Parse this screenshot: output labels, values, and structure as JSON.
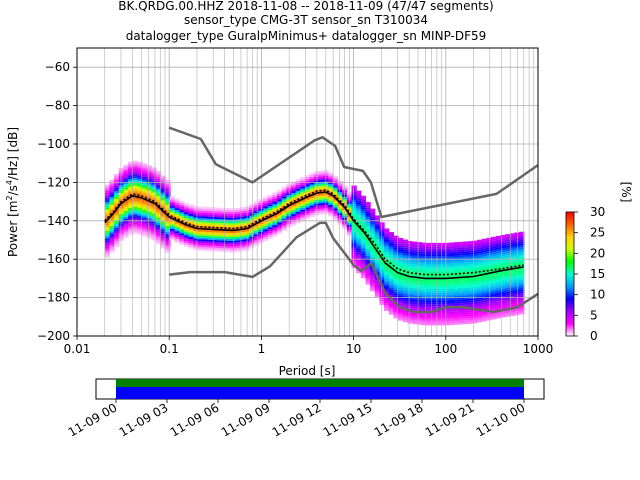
{
  "chart_data": [
    {
      "type": "heatmap",
      "title_lines": [
        "BK.QRDG.00.HHZ   2018-11-08 -- 2018-11-09  (47/47 segments)",
        "sensor_type CMG-3T sensor_sn T310034",
        "datalogger_type GuralpMinimus+ datalogger_sn MINP-DF59"
      ],
      "xlabel": "Period [s]",
      "ylabel_parts": [
        "Power [m",
        "2",
        "/s",
        "4",
        "/Hz] [dB]"
      ],
      "x_scale": "log",
      "xlim": [
        0.01,
        1000
      ],
      "ylim": [
        -200,
        -50
      ],
      "grid": true,
      "x_ticks": [
        {
          "value": 0.01,
          "label": "0.01"
        },
        {
          "value": 0.1,
          "label": "0.1"
        },
        {
          "value": 1,
          "label": "1"
        },
        {
          "value": 10,
          "label": "10"
        },
        {
          "value": 100,
          "label": "100"
        },
        {
          "value": 1000,
          "label": "1000"
        }
      ],
      "y_ticks": [
        {
          "value": -60,
          "label": "−60"
        },
        {
          "value": -80,
          "label": "−80"
        },
        {
          "value": -100,
          "label": "−100"
        },
        {
          "value": -120,
          "label": "−120"
        },
        {
          "value": -140,
          "label": "−140"
        },
        {
          "value": -160,
          "label": "−160"
        },
        {
          "value": -180,
          "label": "−180"
        },
        {
          "value": -200,
          "label": "−200"
        }
      ],
      "colorbar": {
        "label": "[%]",
        "range": [
          0,
          30
        ],
        "ticks": [
          {
            "value": 0,
            "label": "0"
          },
          {
            "value": 5,
            "label": "5"
          },
          {
            "value": 10,
            "label": "10"
          },
          {
            "value": 15,
            "label": "15"
          },
          {
            "value": 20,
            "label": "20"
          },
          {
            "value": 25,
            "label": "25"
          },
          {
            "value": 30,
            "label": "30"
          }
        ],
        "colors": [
          "#ffffff",
          "#ff00ff",
          "#a000ff",
          "#0000ff",
          "#00a0ff",
          "#00ffd0",
          "#00ff00",
          "#d0ff00",
          "#ffd000",
          "#ff6000",
          "#ff0000"
        ]
      },
      "series": [
        {
          "role": "noise-model-high",
          "color": "#666666",
          "x": [
            0.1,
            0.22,
            0.32,
            0.8,
            3.8,
            4.6,
            6.3,
            7.9,
            10,
            12.6,
            15.4,
            20,
            354.8,
            1000
          ],
          "y": [
            -91.5,
            -97.4,
            -110.5,
            -120,
            -98,
            -96.5,
            -101,
            -112,
            -113,
            -114,
            -120,
            -138,
            -126,
            -111
          ]
        },
        {
          "role": "noise-model-low",
          "color": "#666666",
          "x": [
            0.1,
            0.17,
            0.4,
            0.8,
            1.24,
            2.4,
            4.3,
            5,
            6,
            10,
            12,
            15.6,
            21.9,
            31.6,
            45,
            70,
            101,
            154,
            328,
            600,
            1000
          ],
          "y": [
            -168,
            -166.7,
            -166.7,
            -169.2,
            -163.7,
            -148.6,
            -141.1,
            -141.1,
            -149,
            -163,
            -166.2,
            -162.1,
            -177.5,
            -185,
            -187.5,
            -187.5,
            -185,
            -185,
            -187.5,
            -185,
            -178
          ]
        },
        {
          "role": "mode",
          "color": "#000000",
          "x": [
            0.02,
            0.025,
            0.03,
            0.04,
            0.05,
            0.07,
            0.1,
            0.15,
            0.2,
            0.3,
            0.5,
            0.7,
            1,
            1.5,
            2,
            3,
            4,
            5,
            6,
            8,
            10,
            13,
            17,
            22,
            30,
            40,
            60,
            100,
            200,
            400,
            700
          ],
          "y": [
            -141,
            -136,
            -131,
            -127,
            -128,
            -131,
            -138,
            -142,
            -144,
            -144.5,
            -145,
            -144,
            -140,
            -136,
            -132,
            -128,
            -125.5,
            -125,
            -127,
            -133,
            -140,
            -146,
            -154,
            -162,
            -167,
            -169,
            -170,
            -170,
            -169,
            -166,
            -164
          ]
        },
        {
          "role": "mean",
          "color": "#000000",
          "dashed": true,
          "x": [
            0.02,
            0.025,
            0.03,
            0.04,
            0.05,
            0.07,
            0.1,
            0.15,
            0.2,
            0.3,
            0.5,
            0.7,
            1,
            1.5,
            2,
            3,
            4,
            5,
            6,
            8,
            10,
            13,
            17,
            22,
            30,
            40,
            60,
            100,
            200,
            400,
            700
          ],
          "y": [
            -140,
            -135,
            -130,
            -126,
            -127,
            -130,
            -137,
            -141,
            -143,
            -143.5,
            -144,
            -143,
            -139,
            -135,
            -131,
            -127,
            -124.5,
            -124,
            -126,
            -132,
            -139,
            -145,
            -152,
            -160,
            -165,
            -167,
            -168,
            -168,
            -167,
            -165,
            -163
          ]
        }
      ]
    },
    {
      "type": "timeline",
      "x_ticks": [
        "11-09 00",
        "11-09 03",
        "11-09 06",
        "11-09 09",
        "11-09 12",
        "11-09 15",
        "11-09 18",
        "11-09 21",
        "11-10 00"
      ],
      "bars": [
        {
          "role": "coverage",
          "color": "#008000",
          "start_hour": 0,
          "end_hour": 24
        },
        {
          "role": "psd-segments",
          "color": "#0000ff",
          "start_hour": 0,
          "end_hour": 24
        }
      ]
    }
  ]
}
